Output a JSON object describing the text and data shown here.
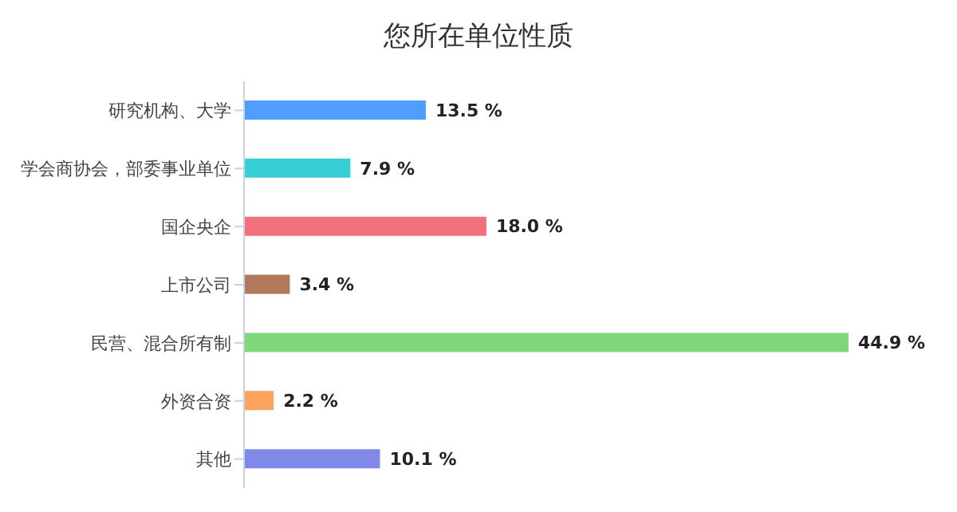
{
  "chart_data": {
    "type": "bar",
    "orientation": "horizontal",
    "title": "您所在单位性质",
    "categories": [
      "研究机构、大学",
      "学会商协会，部委事业单位",
      "国企央企",
      "上市公司",
      "民营、混合所有制",
      "外资合资",
      "其他"
    ],
    "values": [
      13.5,
      7.9,
      18.0,
      3.4,
      44.9,
      2.2,
      10.1
    ],
    "value_labels": [
      "13.5 %",
      "7.9 %",
      "18.0 %",
      "3.4 %",
      "44.9 %",
      "2.2 %",
      "10.1 %"
    ],
    "colors": [
      "#4f9dfc",
      "#36cfd6",
      "#f2707e",
      "#b07a5a",
      "#7ed87a",
      "#fca35f",
      "#8088e8"
    ],
    "tick_labels": "y"
  }
}
